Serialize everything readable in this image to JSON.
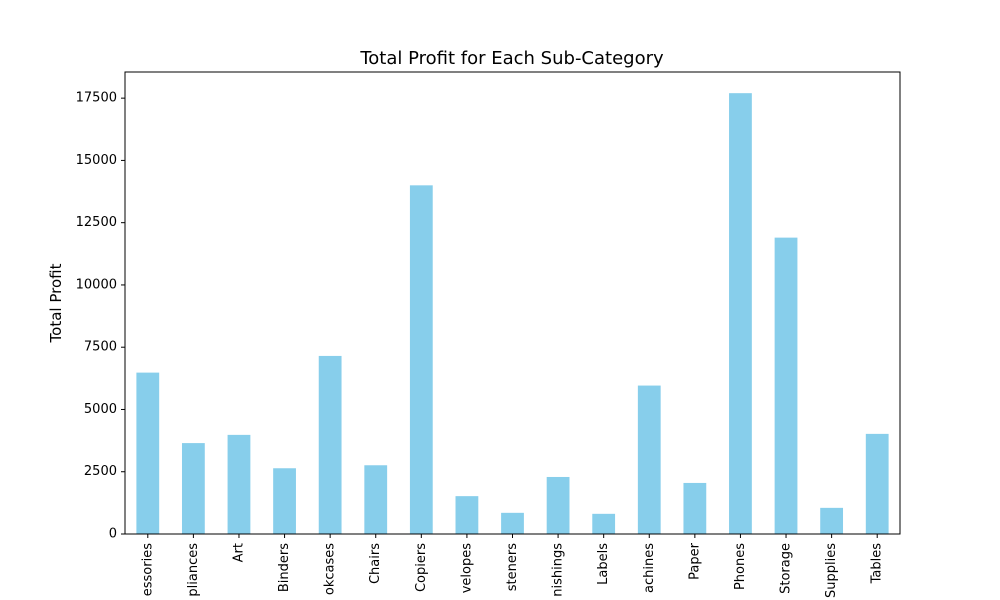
{
  "chart_data": {
    "type": "bar",
    "title": "Total Profit for Each Sub-Category",
    "xlabel": "",
    "ylabel": "Total Profit",
    "categories": [
      "Accessories",
      "Appliances",
      "Art",
      "Binders",
      "Bookcases",
      "Chairs",
      "Copiers",
      "Envelopes",
      "Fasteners",
      "Furnishings",
      "Labels",
      "Machines",
      "Paper",
      "Phones",
      "Storage",
      "Supplies",
      "Tables"
    ],
    "category_tick_labels": [
      "essories",
      "pliances",
      "Art",
      "Binders",
      "okcases",
      "Chairs",
      "Copiers",
      "velopes",
      "steners",
      "nishings",
      "Labels",
      "achines",
      "Paper",
      "Phones",
      "Storage",
      "Supplies",
      "Tables"
    ],
    "values": [
      6480,
      3650,
      3980,
      2640,
      7150,
      2760,
      14000,
      1520,
      850,
      2290,
      810,
      5960,
      2050,
      17700,
      11900,
      1050,
      4020
    ],
    "ylim": [
      0,
      18550
    ],
    "yticks": [
      0,
      2500,
      5000,
      7500,
      10000,
      12500,
      15000,
      17500
    ],
    "ytick_labels": [
      "0",
      "2500",
      "5000",
      "7500",
      "10000",
      "12500",
      "15000",
      "17500"
    ],
    "bar_color": "#87ceeb",
    "grid": false,
    "legend": "none"
  }
}
